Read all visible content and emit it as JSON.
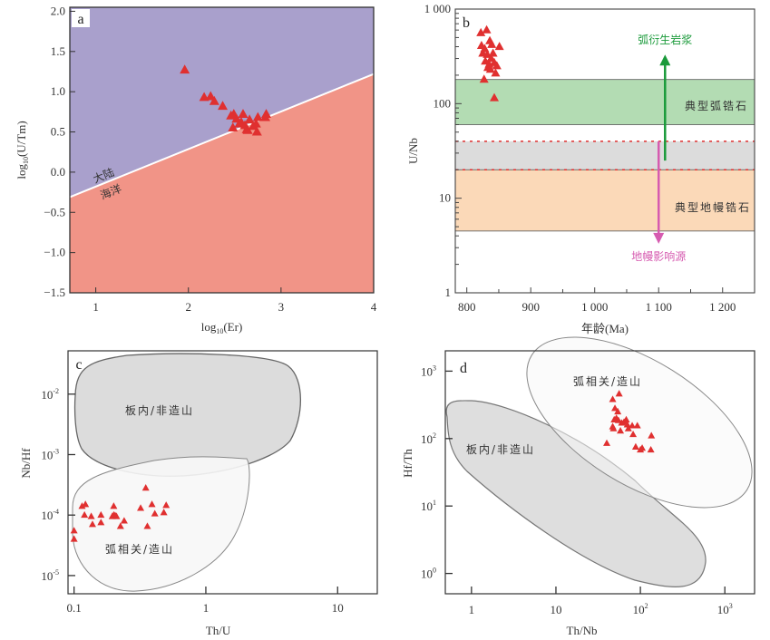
{
  "chart_data": [
    {
      "id": "a",
      "type": "scatter",
      "panel_label": "a",
      "title": "",
      "xlabel": "log10(Er)",
      "ylabel": "log10(U/Tm)",
      "xlim": [
        0.72,
        4
      ],
      "ylim": [
        -1.5,
        2.05
      ],
      "xticks": [
        1,
        2,
        3,
        4
      ],
      "xtick_labels": [
        "1",
        "2",
        "3",
        "4"
      ],
      "yticks": [
        2.0,
        1.5,
        1.0,
        0.5,
        0.0,
        -0.5,
        -1.0,
        -1.5
      ],
      "ytick_labels": [
        "2.0",
        "1.5",
        "1.0",
        "0.5",
        "0.0",
        "−0.5",
        "−1.0",
        "−1.5"
      ],
      "grid": false,
      "divider_line": {
        "x": [
          0.72,
          4
        ],
        "y": [
          -0.31,
          1.22
        ]
      },
      "regions": [
        {
          "name": "大陆",
          "color": "#a9a0cc",
          "position": "above-line"
        },
        {
          "name": "海洋",
          "color": "#f19487",
          "position": "below-line"
        }
      ],
      "marker": {
        "shape": "triangle",
        "color": "#e03030"
      },
      "points": [
        [
          1.96,
          1.27
        ],
        [
          2.17,
          0.93
        ],
        [
          2.24,
          0.94
        ],
        [
          2.28,
          0.88
        ],
        [
          2.37,
          0.82
        ],
        [
          2.46,
          0.7
        ],
        [
          2.49,
          0.72
        ],
        [
          2.52,
          0.66
        ],
        [
          2.48,
          0.55
        ],
        [
          2.55,
          0.6
        ],
        [
          2.59,
          0.72
        ],
        [
          2.57,
          0.62
        ],
        [
          2.61,
          0.58
        ],
        [
          2.63,
          0.53
        ],
        [
          2.66,
          0.65
        ],
        [
          2.7,
          0.57
        ],
        [
          2.73,
          0.6
        ],
        [
          2.75,
          0.68
        ],
        [
          2.74,
          0.5
        ],
        [
          2.83,
          0.68
        ],
        [
          2.84,
          0.72
        ],
        [
          2.64,
          0.52
        ]
      ]
    },
    {
      "id": "b",
      "type": "scatter",
      "panel_label": "b",
      "title": "",
      "xlabel": "年龄(Ma)",
      "ylabel": "U/Nb",
      "xlim": [
        782,
        1250
      ],
      "ylim": [
        1,
        1000
      ],
      "yscale": "log",
      "xticks": [
        800,
        900,
        1000,
        1100,
        1200
      ],
      "xtick_labels": [
        "800",
        "900",
        "1 000",
        "1 100",
        "1 200"
      ],
      "yticks": [
        1,
        10,
        100,
        1000
      ],
      "ytick_labels": [
        "1",
        "10",
        "100",
        "1 000"
      ],
      "grid": false,
      "bands": [
        {
          "name": "典型弧锆石",
          "y": [
            60,
            180
          ],
          "color": "#b3dcb3"
        },
        {
          "name": "",
          "y": [
            20,
            40
          ],
          "color": "#dcdcdc"
        },
        {
          "name": "典型地幔锆石",
          "y": [
            4.5,
            20
          ],
          "color": "#fbd9b8"
        }
      ],
      "dashed_lines": [
        {
          "y": 40,
          "color": "#e03030"
        },
        {
          "y": 20,
          "color": "#e03030"
        }
      ],
      "arrows": [
        {
          "label": "弧衍生岩浆",
          "x": 1110,
          "y_from": 25,
          "y_to": 330,
          "color": "#1a9a3a"
        },
        {
          "label": "地幔影响源",
          "x": 1100,
          "y_from": 40,
          "y_to": 3.3,
          "color": "#d65bb0"
        }
      ],
      "marker": {
        "shape": "triangle",
        "color": "#e03030"
      },
      "points": [
        [
          822,
          560
        ],
        [
          831,
          600
        ],
        [
          823,
          410
        ],
        [
          828,
          380
        ],
        [
          836,
          460
        ],
        [
          839,
          420
        ],
        [
          851,
          400
        ],
        [
          825,
          340
        ],
        [
          832,
          330
        ],
        [
          838,
          300
        ],
        [
          841,
          340
        ],
        [
          829,
          280
        ],
        [
          835,
          260
        ],
        [
          843,
          270
        ],
        [
          847,
          250
        ],
        [
          833,
          240
        ],
        [
          837,
          230
        ],
        [
          845,
          210
        ],
        [
          827,
          180
        ],
        [
          843,
          115
        ]
      ]
    },
    {
      "id": "c",
      "type": "scatter",
      "panel_label": "c",
      "title": "",
      "xlabel": "Th/U",
      "ylabel": "Nb/Hf",
      "xscale": "log",
      "yscale": "log",
      "xlim": [
        0.09,
        20
      ],
      "ylim": [
        5e-06,
        0.052
      ],
      "xticks": [
        0.1,
        1,
        10
      ],
      "xtick_labels": [
        "0.1",
        "1",
        "10"
      ],
      "yticks": [
        0.01,
        0.001,
        0.0001,
        1e-05
      ],
      "ytick_labels": [
        [
          "10",
          "-2"
        ],
        [
          "10",
          "-3"
        ],
        [
          "10",
          "-4"
        ],
        [
          "10",
          "-5"
        ]
      ],
      "grid": false,
      "fields": [
        {
          "name": "板内/非造山",
          "color": "#dcdcdc"
        },
        {
          "name": "弧相关/造山",
          "color": "#f7f7f7"
        }
      ],
      "marker": {
        "shape": "triangle",
        "color": "#e03030"
      },
      "points": [
        [
          0.1,
          5.5e-05
        ],
        [
          0.1,
          4e-05
        ],
        [
          0.115,
          0.00014
        ],
        [
          0.122,
          0.00015
        ],
        [
          0.12,
          0.0001
        ],
        [
          0.135,
          9.5e-05
        ],
        [
          0.138,
          7e-05
        ],
        [
          0.16,
          0.0001
        ],
        [
          0.16,
          7.5e-05
        ],
        [
          0.195,
          9.5e-05
        ],
        [
          0.2,
          0.0001
        ],
        [
          0.205,
          9.8e-05
        ],
        [
          0.21,
          9.5e-05
        ],
        [
          0.2,
          0.00014
        ],
        [
          0.225,
          6.5e-05
        ],
        [
          0.24,
          8e-05
        ],
        [
          0.32,
          0.00013
        ],
        [
          0.35,
          0.00028
        ],
        [
          0.36,
          6.5e-05
        ],
        [
          0.39,
          0.00015
        ],
        [
          0.41,
          0.000105
        ],
        [
          0.48,
          0.00011
        ],
        [
          0.5,
          0.000145
        ]
      ]
    },
    {
      "id": "d",
      "type": "scatter",
      "panel_label": "d",
      "title": "",
      "xlabel": "Th/Nb",
      "ylabel": "Hf/Th",
      "xscale": "log",
      "yscale": "log",
      "xlim": [
        0.49,
        2250
      ],
      "ylim": [
        0.5,
        2000
      ],
      "xticks": [
        1,
        10,
        100,
        1000
      ],
      "xtick_labels": [
        [
          "1",
          ""
        ],
        [
          "10",
          ""
        ],
        [
          "10",
          "2"
        ],
        [
          "10",
          "3"
        ]
      ],
      "yticks": [
        1,
        10,
        100,
        1000
      ],
      "ytick_labels": [
        [
          "10",
          "0"
        ],
        [
          "10",
          "1"
        ],
        [
          "10",
          "2"
        ],
        [
          "10",
          "3"
        ]
      ],
      "grid": false,
      "fields": [
        {
          "name": "板内/非造山",
          "color": "#dcdcdc"
        },
        {
          "name": "弧相关/造山",
          "color": "#f7f7f7"
        }
      ],
      "marker": {
        "shape": "triangle",
        "color": "#e03030"
      },
      "points": [
        [
          40,
          85
        ],
        [
          47,
          380
        ],
        [
          56,
          460
        ],
        [
          50,
          280
        ],
        [
          54,
          250
        ],
        [
          49,
          190
        ],
        [
          52,
          200
        ],
        [
          55,
          185
        ],
        [
          47,
          150
        ],
        [
          48,
          140
        ],
        [
          58,
          130
        ],
        [
          60,
          170
        ],
        [
          64,
          175
        ],
        [
          68,
          190
        ],
        [
          70,
          160
        ],
        [
          72,
          140
        ],
        [
          80,
          155
        ],
        [
          92,
          155
        ],
        [
          82,
          115
        ],
        [
          88,
          75
        ],
        [
          100,
          68
        ],
        [
          105,
          72
        ],
        [
          135,
          110
        ],
        [
          133,
          68
        ]
      ]
    }
  ]
}
